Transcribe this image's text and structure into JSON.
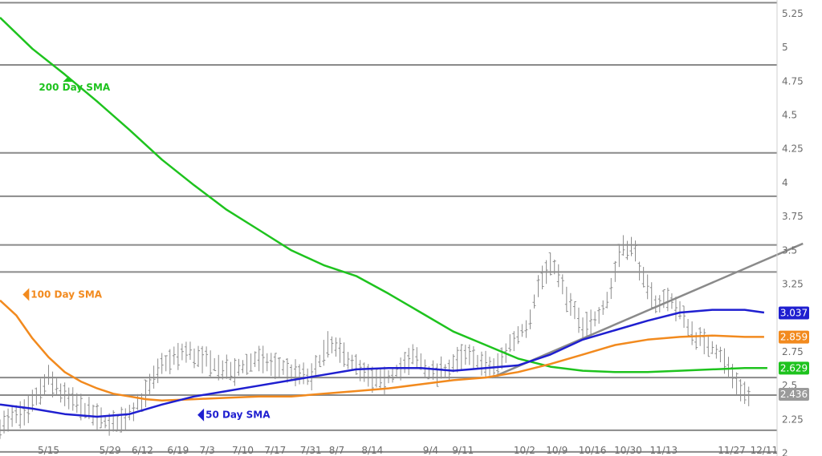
{
  "chart_data": {
    "type": "line",
    "title": "",
    "xlabel": "",
    "ylabel": "",
    "ylim": [
      1.98,
      5.35
    ],
    "y_ticks": [
      2,
      2.25,
      2.5,
      2.75,
      3,
      3.25,
      3.5,
      3.75,
      4,
      4.25,
      4.5,
      4.75,
      5,
      5.25
    ],
    "y_tick_labels": [
      "2",
      "2.25",
      "2.5",
      "2.75",
      "",
      "3.25",
      "3.5",
      "3.75",
      "4",
      "4.25",
      "4.5",
      "4.75",
      "5",
      "5.25"
    ],
    "x_range": [
      0,
      240
    ],
    "x_tick_labels": [
      "5/15",
      "5/29",
      "6/12",
      "6/19",
      "7/3",
      "7/10",
      "7/17",
      "7/31",
      "8/7",
      "8/14",
      "9/4",
      "9/11",
      "10/2",
      "10/9",
      "10/16",
      "10/30",
      "11/13",
      "11/27",
      "12/11"
    ],
    "x_tick_positions": [
      15,
      34,
      44,
      55,
      64,
      75,
      85,
      96,
      104,
      115,
      133,
      143,
      162,
      172,
      183,
      194,
      205,
      226,
      236
    ],
    "horizontal_levels": [
      5.33,
      4.87,
      4.22,
      3.9,
      3.54,
      3.34,
      2.56,
      2.43,
      2.17,
      2.01
    ],
    "trendline": [
      [
        152,
        2.56
      ],
      [
        248,
        3.55
      ]
    ],
    "series": [
      {
        "name": "200 Day SMA",
        "color": "#1ec31e",
        "points": [
          [
            0,
            5.22
          ],
          [
            10,
            4.99
          ],
          [
            20,
            4.8
          ],
          [
            30,
            4.6
          ],
          [
            40,
            4.39
          ],
          [
            50,
            4.17
          ],
          [
            60,
            3.98
          ],
          [
            70,
            3.8
          ],
          [
            80,
            3.65
          ],
          [
            90,
            3.5
          ],
          [
            100,
            3.39
          ],
          [
            110,
            3.31
          ],
          [
            120,
            3.18
          ],
          [
            130,
            3.04
          ],
          [
            140,
            2.9
          ],
          [
            150,
            2.8
          ],
          [
            160,
            2.7
          ],
          [
            170,
            2.64
          ],
          [
            180,
            2.61
          ],
          [
            190,
            2.6
          ],
          [
            200,
            2.6
          ],
          [
            210,
            2.61
          ],
          [
            220,
            2.62
          ],
          [
            230,
            2.63
          ],
          [
            237,
            2.63
          ]
        ]
      },
      {
        "name": "100 Day SMA",
        "color": "#f28a1e",
        "points": [
          [
            0,
            3.13
          ],
          [
            5,
            3.02
          ],
          [
            10,
            2.85
          ],
          [
            15,
            2.71
          ],
          [
            20,
            2.6
          ],
          [
            25,
            2.53
          ],
          [
            30,
            2.48
          ],
          [
            35,
            2.44
          ],
          [
            40,
            2.42
          ],
          [
            45,
            2.4
          ],
          [
            50,
            2.39
          ],
          [
            60,
            2.4
          ],
          [
            70,
            2.41
          ],
          [
            80,
            2.42
          ],
          [
            90,
            2.42
          ],
          [
            100,
            2.44
          ],
          [
            110,
            2.46
          ],
          [
            120,
            2.48
          ],
          [
            130,
            2.51
          ],
          [
            140,
            2.54
          ],
          [
            150,
            2.56
          ],
          [
            160,
            2.6
          ],
          [
            170,
            2.66
          ],
          [
            180,
            2.73
          ],
          [
            190,
            2.8
          ],
          [
            200,
            2.84
          ],
          [
            210,
            2.86
          ],
          [
            220,
            2.87
          ],
          [
            230,
            2.86
          ],
          [
            236,
            2.86
          ]
        ]
      },
      {
        "name": "50 Day SMA",
        "color": "#1f1fd0",
        "points": [
          [
            0,
            2.36
          ],
          [
            10,
            2.33
          ],
          [
            20,
            2.29
          ],
          [
            30,
            2.27
          ],
          [
            40,
            2.29
          ],
          [
            50,
            2.36
          ],
          [
            60,
            2.42
          ],
          [
            70,
            2.46
          ],
          [
            80,
            2.5
          ],
          [
            90,
            2.54
          ],
          [
            100,
            2.58
          ],
          [
            110,
            2.62
          ],
          [
            120,
            2.63
          ],
          [
            130,
            2.63
          ],
          [
            140,
            2.61
          ],
          [
            150,
            2.63
          ],
          [
            160,
            2.65
          ],
          [
            170,
            2.73
          ],
          [
            180,
            2.84
          ],
          [
            190,
            2.91
          ],
          [
            200,
            2.98
          ],
          [
            210,
            3.04
          ],
          [
            220,
            3.06
          ],
          [
            230,
            3.06
          ],
          [
            236,
            3.04
          ]
        ]
      }
    ],
    "annotations": [
      {
        "text": "200 Day SMA",
        "color": "#1ec31e",
        "marker": "up-triangle",
        "at": [
          12,
          4.68
        ]
      },
      {
        "text": "100  Day SMA",
        "color": "#f28a1e",
        "marker": "left-triangle",
        "at": [
          9,
          3.15
        ]
      },
      {
        "text": "50 Day SMA",
        "color": "#1f1fd0",
        "marker": "left-triangle",
        "at": [
          63,
          2.26
        ]
      }
    ],
    "price_tags": [
      {
        "text": "3.037",
        "value": 3.037,
        "bg": "#1f1fd0"
      },
      {
        "text": "2.859",
        "value": 2.859,
        "bg": "#f28a1e"
      },
      {
        "text": "2.629",
        "value": 2.629,
        "bg": "#1ec31e"
      },
      {
        "text": "2.436",
        "value": 2.436,
        "bg": "#9a9a9a"
      }
    ],
    "price_bars_color": "#8c8c8c",
    "grid": false,
    "legend": "inline annotations"
  }
}
